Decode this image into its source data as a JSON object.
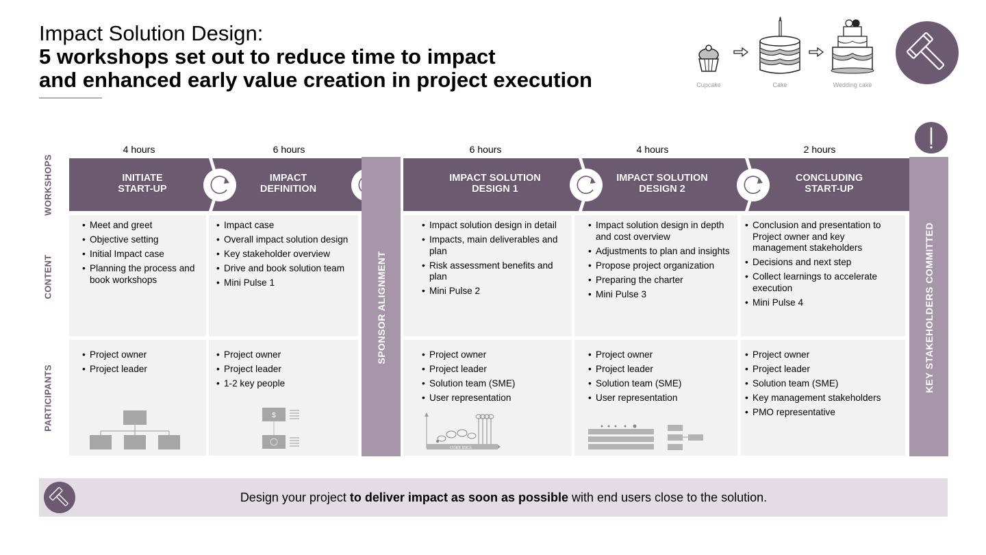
{
  "title": {
    "line1": "Impact Solution Design:",
    "line2": "5 workshops set out to reduce time to impact",
    "line3": "and enhanced early value creation in project execution"
  },
  "cakes": {
    "labels": [
      "Cupcake",
      "Cake",
      "Wedding cake"
    ]
  },
  "row_labels": {
    "workshops": "WORKSHOPS",
    "content": "CONTENT",
    "participants": "PARTICIPANTS"
  },
  "workshops": [
    {
      "hours": "4 hours",
      "title1": "INITIATE",
      "title2": "START-UP",
      "content": [
        "Meet and greet",
        "Objective setting",
        "Initial Impact case",
        "Planning the process and book workshops"
      ],
      "participants": [
        "Project owner",
        "Project leader"
      ]
    },
    {
      "hours": "6 hours",
      "title1": "IMPACT",
      "title2": "DEFINITION",
      "content": [
        "Impact case",
        "Overall impact solution design",
        "Key stakeholder overview",
        "Drive and book solution team",
        "Mini Pulse 1"
      ],
      "participants": [
        "Project owner",
        "Project leader",
        "1-2 key people"
      ]
    },
    {
      "hours": "6 hours",
      "title1": "IMPACT SOLUTION",
      "title2": "DESIGN 1",
      "content": [
        "Impact solution design in detail",
        "Impacts, main deliverables and plan",
        "Risk assessment benefits and plan",
        "Mini Pulse 2"
      ],
      "participants": [
        "Project owner",
        "Project leader",
        "Solution team (SME)",
        "User representation"
      ]
    },
    {
      "hours": "4 hours",
      "title1": "IMPACT SOLUTION",
      "title2": "DESIGN 2",
      "content": [
        "Impact solution design in depth and cost overview",
        "Adjustments to plan and insights",
        "Propose project organization",
        "Preparing the charter",
        "Mini Pulse 3"
      ],
      "participants": [
        "Project owner",
        "Project leader",
        "Solution team (SME)",
        "User representation"
      ]
    },
    {
      "hours": "2 hours",
      "title1": "CONCLUDING",
      "title2": "START-UP",
      "content": [
        "Conclusion and presentation to Project owner and key management stakeholders",
        "Decisions and next step",
        "Collect learnings to accelerate execution",
        "Mini Pulse 4"
      ],
      "participants": [
        "Project owner",
        "Project leader",
        "Solution team (SME)",
        "Key management stakeholders",
        "PMO representative"
      ]
    }
  ],
  "sponsor_bar": "SPONSOR ALIGNMENT",
  "stakeholders_bar": "KEY STAKEHOLDERS COMMITTED",
  "illustrations": {
    "dollar_sign": "$",
    "core_idea": "CORE IDEA"
  },
  "footer": {
    "pre": "Design your project ",
    "bold": "to deliver impact as soon as possible",
    "post": " with end users close to the solution."
  },
  "colors": {
    "purple_dark": "#6c5a70",
    "purple_light": "#a796a9",
    "cell_bg": "#f2f2f2",
    "footer_bg": "#e3dce4"
  },
  "icons": [
    "cupcake-icon",
    "cake-icon",
    "wedding-cake-icon",
    "gavel-icon",
    "exclamation-icon",
    "cycle-icon"
  ]
}
